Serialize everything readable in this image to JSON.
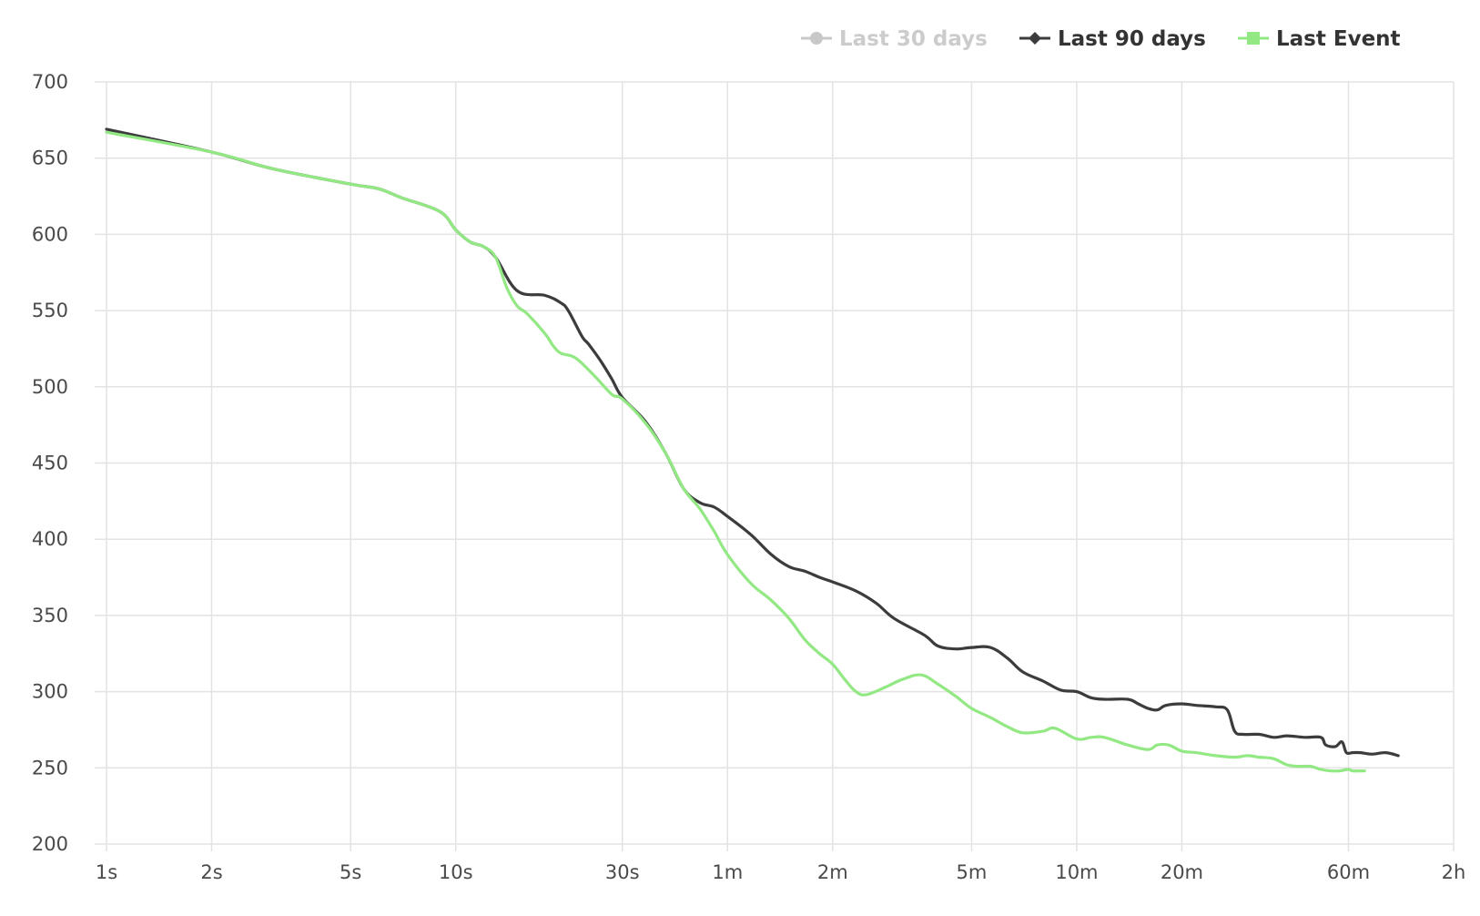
{
  "chart_data": {
    "type": "line",
    "title": "",
    "xlabel": "",
    "ylabel": "",
    "x_scale": "log",
    "x_unit": "seconds",
    "x_ticks": [
      {
        "label": "1s",
        "seconds": 1
      },
      {
        "label": "2s",
        "seconds": 2
      },
      {
        "label": "5s",
        "seconds": 5
      },
      {
        "label": "10s",
        "seconds": 10
      },
      {
        "label": "30s",
        "seconds": 30
      },
      {
        "label": "1m",
        "seconds": 60
      },
      {
        "label": "2m",
        "seconds": 120
      },
      {
        "label": "5m",
        "seconds": 300
      },
      {
        "label": "10m",
        "seconds": 600
      },
      {
        "label": "20m",
        "seconds": 1200
      },
      {
        "label": "60m",
        "seconds": 3600
      },
      {
        "label": "2h",
        "seconds": 7200
      }
    ],
    "y_ticks": [
      700,
      650,
      600,
      550,
      500,
      450,
      400,
      350,
      300,
      250,
      200
    ],
    "ylim": [
      200,
      700
    ],
    "grid": true,
    "legend_position": "top-right",
    "series": [
      {
        "name": "Last 30 days",
        "color": "#c8c8c8",
        "marker": "circle",
        "visible": false,
        "values": []
      },
      {
        "name": "Last 90 days",
        "color": "#3c3c3f",
        "marker": "diamond",
        "visible": true,
        "values": [
          [
            1,
            669
          ],
          [
            2,
            654
          ],
          [
            3,
            643
          ],
          [
            5,
            633
          ],
          [
            6,
            630
          ],
          [
            7,
            624
          ],
          [
            9,
            615
          ],
          [
            10,
            603
          ],
          [
            11,
            595
          ],
          [
            12,
            592
          ],
          [
            13,
            585
          ],
          [
            15,
            563
          ],
          [
            18,
            560
          ],
          [
            20,
            555
          ],
          [
            21,
            550
          ],
          [
            23,
            533
          ],
          [
            24,
            528
          ],
          [
            26,
            517
          ],
          [
            28,
            505
          ],
          [
            30,
            493
          ],
          [
            35,
            477
          ],
          [
            40,
            456
          ],
          [
            45,
            433
          ],
          [
            50,
            424
          ],
          [
            55,
            421
          ],
          [
            60,
            415
          ],
          [
            70,
            403
          ],
          [
            80,
            390
          ],
          [
            90,
            382
          ],
          [
            100,
            379
          ],
          [
            110,
            375
          ],
          [
            120,
            372
          ],
          [
            140,
            366
          ],
          [
            160,
            358
          ],
          [
            180,
            348
          ],
          [
            220,
            337
          ],
          [
            240,
            330
          ],
          [
            270,
            328
          ],
          [
            300,
            329
          ],
          [
            340,
            329
          ],
          [
            380,
            322
          ],
          [
            420,
            313
          ],
          [
            480,
            307
          ],
          [
            540,
            301
          ],
          [
            600,
            300
          ],
          [
            660,
            296
          ],
          [
            720,
            295
          ],
          [
            840,
            295
          ],
          [
            900,
            292
          ],
          [
            960,
            289
          ],
          [
            1020,
            288
          ],
          [
            1080,
            291
          ],
          [
            1200,
            292
          ],
          [
            1320,
            291
          ],
          [
            1500,
            290
          ],
          [
            1620,
            288
          ],
          [
            1700,
            274
          ],
          [
            1800,
            272
          ],
          [
            2000,
            272
          ],
          [
            2200,
            270
          ],
          [
            2400,
            271
          ],
          [
            2700,
            270
          ],
          [
            3000,
            270
          ],
          [
            3100,
            265
          ],
          [
            3300,
            264
          ],
          [
            3450,
            267
          ],
          [
            3550,
            260
          ],
          [
            3700,
            260
          ],
          [
            3900,
            260
          ],
          [
            4200,
            259
          ],
          [
            4600,
            260
          ],
          [
            5000,
            258
          ]
        ]
      },
      {
        "name": "Last Event",
        "color": "#92e882",
        "marker": "square",
        "visible": true,
        "values": [
          [
            1,
            667
          ],
          [
            2,
            654
          ],
          [
            3,
            643
          ],
          [
            5,
            633
          ],
          [
            6,
            630
          ],
          [
            7,
            624
          ],
          [
            9,
            615
          ],
          [
            10,
            603
          ],
          [
            11,
            595
          ],
          [
            12,
            592
          ],
          [
            13,
            585
          ],
          [
            14,
            565
          ],
          [
            15,
            553
          ],
          [
            16,
            548
          ],
          [
            18,
            535
          ],
          [
            19,
            527
          ],
          [
            20,
            522
          ],
          [
            22,
            519
          ],
          [
            25,
            507
          ],
          [
            28,
            495
          ],
          [
            30,
            492
          ],
          [
            35,
            476
          ],
          [
            40,
            456
          ],
          [
            45,
            433
          ],
          [
            50,
            420
          ],
          [
            55,
            405
          ],
          [
            60,
            390
          ],
          [
            70,
            371
          ],
          [
            80,
            360
          ],
          [
            90,
            348
          ],
          [
            100,
            334
          ],
          [
            110,
            325
          ],
          [
            120,
            318
          ],
          [
            130,
            308
          ],
          [
            140,
            300
          ],
          [
            150,
            298
          ],
          [
            170,
            303
          ],
          [
            190,
            308
          ],
          [
            215,
            311
          ],
          [
            240,
            305
          ],
          [
            270,
            297
          ],
          [
            300,
            289
          ],
          [
            340,
            283
          ],
          [
            380,
            277
          ],
          [
            420,
            273
          ],
          [
            480,
            274
          ],
          [
            520,
            276
          ],
          [
            600,
            269
          ],
          [
            660,
            270
          ],
          [
            720,
            270
          ],
          [
            840,
            265
          ],
          [
            960,
            262
          ],
          [
            1020,
            265
          ],
          [
            1100,
            265
          ],
          [
            1200,
            261
          ],
          [
            1320,
            260
          ],
          [
            1500,
            258
          ],
          [
            1700,
            257
          ],
          [
            1850,
            258
          ],
          [
            2000,
            257
          ],
          [
            2200,
            256
          ],
          [
            2400,
            252
          ],
          [
            2600,
            251
          ],
          [
            2800,
            251
          ],
          [
            3000,
            249
          ],
          [
            3200,
            248
          ],
          [
            3400,
            248
          ],
          [
            3600,
            249
          ],
          [
            3700,
            248
          ],
          [
            4000,
            248
          ]
        ]
      }
    ]
  }
}
